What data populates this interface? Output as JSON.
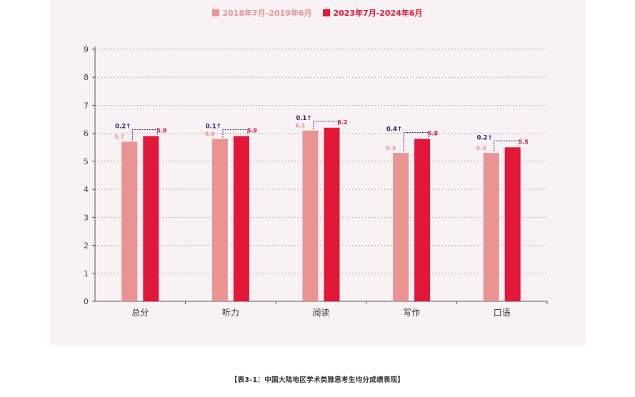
{
  "legend": [
    {
      "label": "2018年7月-2019年6月",
      "color": "#e99493"
    },
    {
      "label": "2023年7月-2024年6月",
      "color": "#e2173a"
    }
  ],
  "caption": "【表3-1：中国大陆地区学术类雅思考生均分成绩表现】",
  "colors": {
    "series1": "#e99493",
    "series2": "#e2173a",
    "delta": "#2a2470",
    "axis": "#555555",
    "grid": "#9a9a9a"
  },
  "chart_data": {
    "type": "bar",
    "categories": [
      "总分",
      "听力",
      "阅读",
      "写作",
      "口语"
    ],
    "series": [
      {
        "name": "2018年7月-2019年6月",
        "values": [
          5.7,
          5.8,
          6.1,
          5.3,
          5.3
        ],
        "labels": [
          "5.7",
          "5.8",
          "6.1",
          "5.3",
          "5.3"
        ]
      },
      {
        "name": "2023年7月-2024年6月",
        "values": [
          5.9,
          5.9,
          6.2,
          5.8,
          5.5
        ],
        "labels": [
          "5.9",
          "5.9",
          "6.2",
          "5.8",
          "5.5"
        ]
      }
    ],
    "deltas": [
      "0.2↑",
      "0.1↑",
      "0.1↑",
      "0.4↑",
      "0.2↑"
    ],
    "yticks": [
      "0",
      "1",
      "2",
      "3",
      "4",
      "5",
      "6",
      "7",
      "8",
      "9"
    ],
    "ylim": [
      0,
      9
    ],
    "grid": true,
    "legend_position": "top-center"
  }
}
